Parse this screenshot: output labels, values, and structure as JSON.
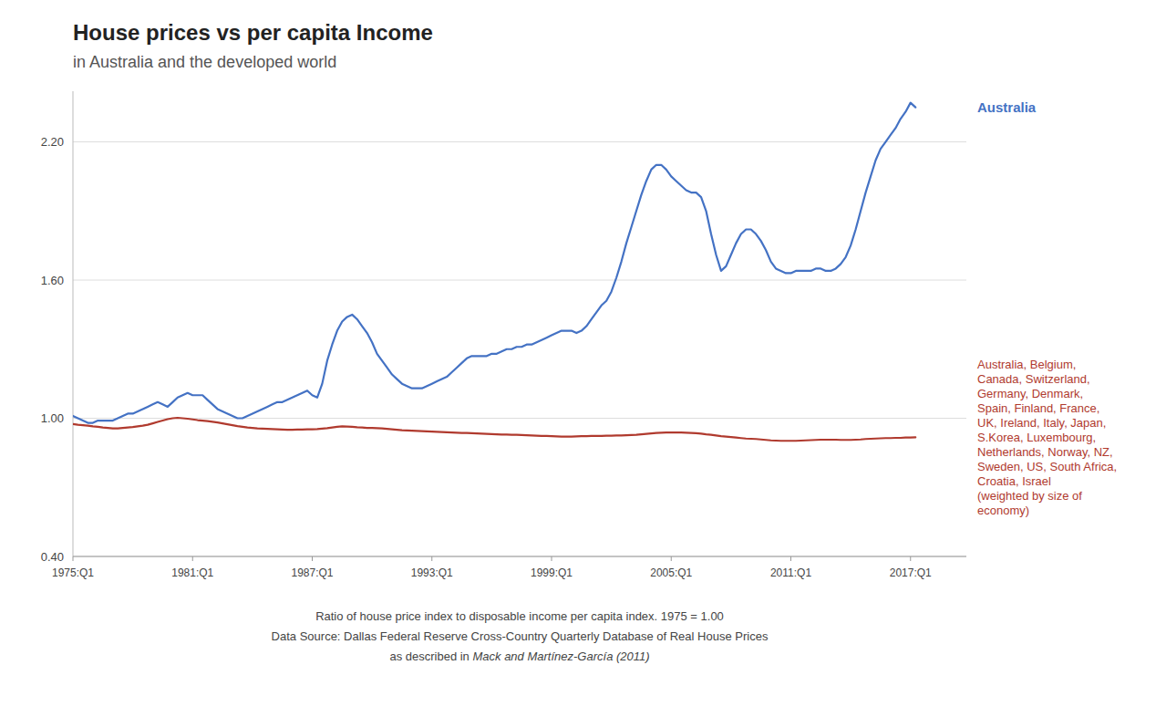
{
  "chart_data": {
    "type": "line",
    "title": "House prices vs per capita Income",
    "subtitle": "in Australia and the developed world",
    "annotations": [
      "Ratio of house price index to disposable income per capita index.  1975 = 1.00",
      "Data Source: Dallas Federal Reserve Cross-Country Quarterly Database of Real House Prices",
      "as described in ",
      "Mack and Martínez-García (2011)"
    ],
    "grid": true,
    "xlim": [
      1975.0,
      2019.8
    ],
    "xticks": [
      {
        "value": 1975,
        "label": "1975:Q1"
      },
      {
        "value": 1981,
        "label": "1981:Q1"
      },
      {
        "value": 1987,
        "label": "1987:Q1"
      },
      {
        "value": 1993,
        "label": "1993:Q1"
      },
      {
        "value": 1999,
        "label": "1999:Q1"
      },
      {
        "value": 2005,
        "label": "2005:Q1"
      },
      {
        "value": 2011,
        "label": "2011:Q1"
      },
      {
        "value": 2017,
        "label": "2017:Q1"
      }
    ],
    "ylim": [
      0.4,
      2.42
    ],
    "yticks": [
      {
        "value": 0.4,
        "label": "0.40"
      },
      {
        "value": 1.0,
        "label": "1.00"
      },
      {
        "value": 1.6,
        "label": "1.60"
      },
      {
        "value": 2.2,
        "label": "2.20"
      }
    ],
    "x": [
      1975,
      1975.25,
      1975.5,
      1975.75,
      1976,
      1976.25,
      1976.5,
      1976.75,
      1977,
      1977.25,
      1977.5,
      1977.75,
      1978,
      1978.25,
      1978.5,
      1978.75,
      1979,
      1979.25,
      1979.5,
      1979.75,
      1980,
      1980.25,
      1980.5,
      1980.75,
      1981,
      1981.25,
      1981.5,
      1981.75,
      1982,
      1982.25,
      1982.5,
      1982.75,
      1983,
      1983.25,
      1983.5,
      1983.75,
      1984,
      1984.25,
      1984.5,
      1984.75,
      1985,
      1985.25,
      1985.5,
      1985.75,
      1986,
      1986.25,
      1986.5,
      1986.75,
      1987,
      1987.25,
      1987.5,
      1987.75,
      1988,
      1988.25,
      1988.5,
      1988.75,
      1989,
      1989.25,
      1989.5,
      1989.75,
      1990,
      1990.25,
      1990.5,
      1990.75,
      1991,
      1991.25,
      1991.5,
      1991.75,
      1992,
      1992.25,
      1992.5,
      1992.75,
      1993,
      1993.25,
      1993.5,
      1993.75,
      1994,
      1994.25,
      1994.5,
      1994.75,
      1995,
      1995.25,
      1995.5,
      1995.75,
      1996,
      1996.25,
      1996.5,
      1996.75,
      1997,
      1997.25,
      1997.5,
      1997.75,
      1998,
      1998.25,
      1998.5,
      1998.75,
      1999,
      1999.25,
      1999.5,
      1999.75,
      2000,
      2000.25,
      2000.5,
      2000.75,
      2001,
      2001.25,
      2001.5,
      2001.75,
      2002,
      2002.25,
      2002.5,
      2002.75,
      2003,
      2003.25,
      2003.5,
      2003.75,
      2004,
      2004.25,
      2004.5,
      2004.75,
      2005,
      2005.25,
      2005.5,
      2005.75,
      2006,
      2006.25,
      2006.5,
      2006.75,
      2007,
      2007.25,
      2007.5,
      2007.75,
      2008,
      2008.25,
      2008.5,
      2008.75,
      2009,
      2009.25,
      2009.5,
      2009.75,
      2010,
      2010.25,
      2010.5,
      2010.75,
      2011,
      2011.25,
      2011.5,
      2011.75,
      2012,
      2012.25,
      2012.5,
      2012.75,
      2013,
      2013.25,
      2013.5,
      2013.75,
      2014,
      2014.25,
      2014.5,
      2014.75,
      2015,
      2015.25,
      2015.5,
      2015.75,
      2016,
      2016.25,
      2016.5,
      2016.75,
      2017,
      2017.25
    ],
    "series": [
      {
        "name": "Australia",
        "color": "#4472C4",
        "values": [
          1.01,
          1.0,
          0.99,
          0.98,
          0.98,
          0.99,
          0.99,
          0.99,
          0.99,
          1.0,
          1.01,
          1.02,
          1.02,
          1.03,
          1.04,
          1.05,
          1.06,
          1.07,
          1.06,
          1.05,
          1.07,
          1.09,
          1.1,
          1.11,
          1.1,
          1.1,
          1.1,
          1.08,
          1.06,
          1.04,
          1.03,
          1.02,
          1.01,
          1.0,
          1.0,
          1.01,
          1.02,
          1.03,
          1.04,
          1.05,
          1.06,
          1.07,
          1.07,
          1.08,
          1.09,
          1.1,
          1.11,
          1.12,
          1.1,
          1.09,
          1.15,
          1.25,
          1.32,
          1.38,
          1.42,
          1.44,
          1.45,
          1.43,
          1.4,
          1.37,
          1.33,
          1.28,
          1.25,
          1.22,
          1.19,
          1.17,
          1.15,
          1.14,
          1.13,
          1.13,
          1.13,
          1.14,
          1.15,
          1.16,
          1.17,
          1.18,
          1.2,
          1.22,
          1.24,
          1.26,
          1.27,
          1.27,
          1.27,
          1.27,
          1.28,
          1.28,
          1.29,
          1.3,
          1.3,
          1.31,
          1.31,
          1.32,
          1.32,
          1.33,
          1.34,
          1.35,
          1.36,
          1.37,
          1.38,
          1.38,
          1.38,
          1.37,
          1.38,
          1.4,
          1.43,
          1.46,
          1.49,
          1.51,
          1.55,
          1.61,
          1.68,
          1.76,
          1.83,
          1.9,
          1.97,
          2.03,
          2.08,
          2.1,
          2.1,
          2.08,
          2.05,
          2.03,
          2.01,
          1.99,
          1.98,
          1.98,
          1.96,
          1.9,
          1.8,
          1.71,
          1.64,
          1.66,
          1.71,
          1.76,
          1.8,
          1.82,
          1.82,
          1.8,
          1.77,
          1.73,
          1.68,
          1.65,
          1.64,
          1.63,
          1.63,
          1.64,
          1.64,
          1.64,
          1.64,
          1.65,
          1.65,
          1.64,
          1.64,
          1.65,
          1.67,
          1.7,
          1.75,
          1.82,
          1.9,
          1.98,
          2.05,
          2.12,
          2.17,
          2.2,
          2.23,
          2.26,
          2.3,
          2.33,
          2.37,
          2.35
        ]
      },
      {
        "name": "Australia, Belgium,\nCanada, Switzerland,\nGermany, Denmark,\nSpain, Finland, France,\nUK, Ireland, Italy, Japan,\nS.Korea, Luxembourg,\nNetherlands, Norway, NZ,\nSweden, US, South Africa,\nCroatia, Israel\n(weighted by size of\neconomy)",
        "color": "#B03A2E",
        "values": [
          0.975,
          0.972,
          0.97,
          0.968,
          0.965,
          0.963,
          0.96,
          0.958,
          0.956,
          0.956,
          0.958,
          0.96,
          0.962,
          0.965,
          0.968,
          0.972,
          0.978,
          0.984,
          0.99,
          0.996,
          1.0,
          1.002,
          1.0,
          0.998,
          0.995,
          0.992,
          0.99,
          0.988,
          0.985,
          0.982,
          0.978,
          0.974,
          0.97,
          0.966,
          0.963,
          0.96,
          0.958,
          0.956,
          0.955,
          0.954,
          0.953,
          0.952,
          0.951,
          0.95,
          0.95,
          0.951,
          0.951,
          0.952,
          0.952,
          0.953,
          0.955,
          0.957,
          0.96,
          0.963,
          0.965,
          0.964,
          0.963,
          0.961,
          0.96,
          0.958,
          0.958,
          0.957,
          0.956,
          0.954,
          0.952,
          0.95,
          0.948,
          0.947,
          0.946,
          0.945,
          0.944,
          0.943,
          0.942,
          0.941,
          0.94,
          0.939,
          0.938,
          0.937,
          0.936,
          0.936,
          0.935,
          0.934,
          0.933,
          0.932,
          0.931,
          0.93,
          0.929,
          0.929,
          0.928,
          0.928,
          0.927,
          0.926,
          0.925,
          0.924,
          0.923,
          0.923,
          0.922,
          0.921,
          0.92,
          0.92,
          0.92,
          0.921,
          0.922,
          0.922,
          0.923,
          0.923,
          0.923,
          0.924,
          0.924,
          0.925,
          0.925,
          0.926,
          0.927,
          0.928,
          0.93,
          0.932,
          0.934,
          0.936,
          0.937,
          0.938,
          0.938,
          0.938,
          0.938,
          0.937,
          0.936,
          0.935,
          0.933,
          0.93,
          0.928,
          0.925,
          0.922,
          0.92,
          0.918,
          0.916,
          0.914,
          0.912,
          0.911,
          0.91,
          0.908,
          0.906,
          0.904,
          0.903,
          0.902,
          0.902,
          0.902,
          0.902,
          0.903,
          0.904,
          0.905,
          0.906,
          0.907,
          0.907,
          0.907,
          0.907,
          0.906,
          0.906,
          0.906,
          0.907,
          0.908,
          0.91,
          0.911,
          0.912,
          0.913,
          0.914,
          0.914,
          0.915,
          0.915,
          0.916,
          0.916,
          0.917
        ]
      }
    ]
  }
}
